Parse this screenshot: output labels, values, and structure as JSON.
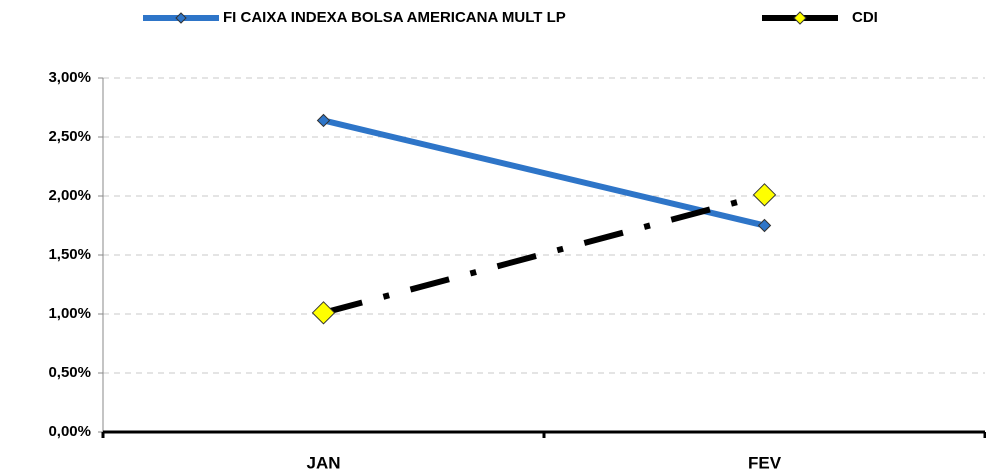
{
  "chart_data": {
    "type": "line",
    "categories": [
      "JAN",
      "FEV"
    ],
    "series": [
      {
        "name": "FI CAIXA INDEXA BOLSA AMERICANA MULT LP",
        "color": "#2e75c8",
        "marker_color": "#2e75c8",
        "line_style": "solid",
        "values": [
          2.64,
          1.75
        ]
      },
      {
        "name": "CDI",
        "color": "#000000",
        "marker_color": "#ffff00",
        "line_style": "dash-dot",
        "values": [
          1.01,
          2.01
        ]
      }
    ],
    "ylim": [
      0,
      3
    ],
    "yticks": [
      {
        "value": 0,
        "label": "0,00%"
      },
      {
        "value": 0.5,
        "label": "0,50%"
      },
      {
        "value": 1,
        "label": "1,00%"
      },
      {
        "value": 1.5,
        "label": "1,50%"
      },
      {
        "value": 2,
        "label": "2,00%"
      },
      {
        "value": 2.5,
        "label": "2,50%"
      },
      {
        "value": 3,
        "label": "3,00%"
      }
    ],
    "grid": true,
    "legend": "top"
  }
}
